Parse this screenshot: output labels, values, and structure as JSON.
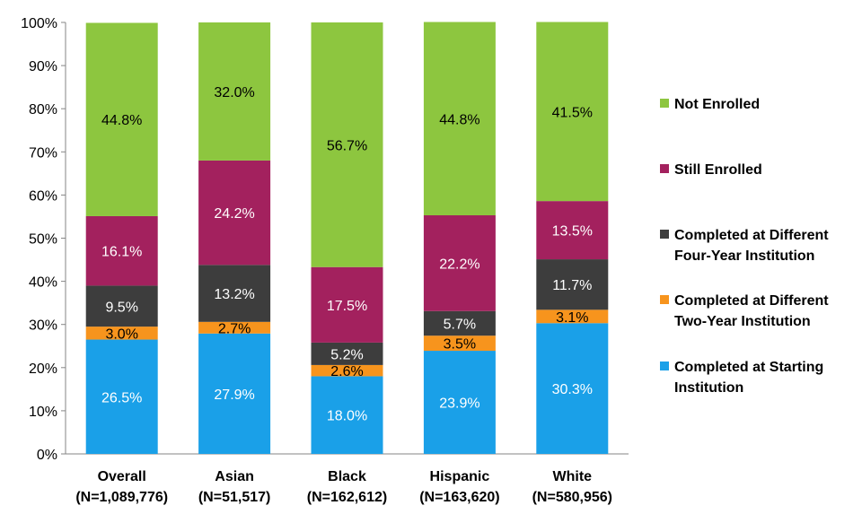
{
  "chart_data": {
    "type": "bar",
    "stacked": true,
    "categories": [
      [
        "Overall",
        "(N=1,089,776)"
      ],
      [
        "Asian",
        "(N=51,517)"
      ],
      [
        "Black",
        "(N=162,612)"
      ],
      [
        "Hispanic",
        "(N=163,620)"
      ],
      [
        "White",
        "(N=580,956)"
      ]
    ],
    "series": [
      {
        "name": "Completed at Starting Institution",
        "color": "#1aa0e8",
        "label_color": "#ffffff",
        "values": [
          26.5,
          27.9,
          18.0,
          23.9,
          30.3
        ],
        "labels": [
          "26.5%",
          "27.9%",
          "18.0%",
          "23.9%",
          "30.3%"
        ]
      },
      {
        "name": "Completed at Different Two-Year Institution",
        "color": "#f7941d",
        "label_color": "#000000",
        "values": [
          3.0,
          2.7,
          2.6,
          3.5,
          3.1
        ],
        "labels": [
          "3.0%",
          "2.7%",
          "2.6%",
          "3.5%",
          "3.1%"
        ]
      },
      {
        "name": "Completed at Different Four-Year Institution",
        "color": "#3d3d3d",
        "label_color": "#ffffff",
        "values": [
          9.5,
          13.2,
          5.2,
          5.7,
          11.7
        ],
        "labels": [
          "9.5%",
          "13.2%",
          "5.2%",
          "5.7%",
          "11.7%"
        ]
      },
      {
        "name": "Still Enrolled",
        "color": "#a3215e",
        "label_color": "#ffffff",
        "values": [
          16.1,
          24.2,
          17.5,
          22.2,
          13.5
        ],
        "labels": [
          "16.1%",
          "24.2%",
          "17.5%",
          "22.2%",
          "13.5%"
        ]
      },
      {
        "name": "Not Enrolled",
        "color": "#8dc63f",
        "label_color": "#000000",
        "values": [
          44.8,
          32.0,
          56.7,
          44.8,
          41.5
        ],
        "labels": [
          "44.8%",
          "32.0%",
          "56.7%",
          "44.8%",
          "41.5%"
        ]
      }
    ],
    "ylim": [
      0,
      100
    ],
    "yticks": [
      "0%",
      "10%",
      "20%",
      "30%",
      "40%",
      "50%",
      "60%",
      "70%",
      "80%",
      "90%",
      "100%"
    ],
    "legend": {
      "position": "right",
      "items": [
        {
          "lines": [
            "Not Enrolled"
          ],
          "color": "#8dc63f"
        },
        {
          "lines": [
            "Still Enrolled"
          ],
          "color": "#a3215e"
        },
        {
          "lines": [
            "Completed at Different",
            "Four-Year Institution"
          ],
          "color": "#3d3d3d"
        },
        {
          "lines": [
            "Completed at Different",
            "Two-Year Institution"
          ],
          "color": "#f7941d"
        },
        {
          "lines": [
            "Completed at Starting",
            "Institution"
          ],
          "color": "#1aa0e8"
        }
      ]
    }
  }
}
